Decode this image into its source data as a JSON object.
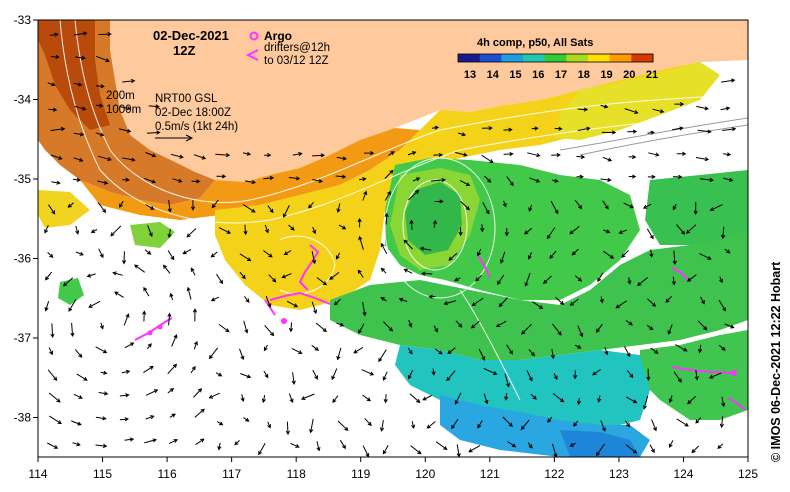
{
  "map": {
    "date_title": "02-Dec-2021",
    "time_title": "12Z",
    "legend": {
      "argo_label": "Argo",
      "drifters_label": "drifters@12h",
      "drifters_sub": "to 03/12 12Z",
      "argo_color": "#ff33ff"
    },
    "currents": {
      "depth1": "200m",
      "depth2": "1000m",
      "product": "NRT00 GSL",
      "time": "02-Dec 18:00Z",
      "scale": "0.5m/s (1kt 24h)"
    },
    "colorbar": {
      "title": "4h comp, p50, All Sats",
      "ticks": [
        "13",
        "14",
        "15",
        "16",
        "17",
        "18",
        "19",
        "20",
        "21"
      ],
      "colors": [
        "#1a1a8c",
        "#1f4fd1",
        "#1ea0e0",
        "#22c8b0",
        "#33cc33",
        "#a8dc1e",
        "#ffe000",
        "#ff9a00",
        "#d43a00"
      ]
    },
    "credit": "© IMOS 06-Dec-2021 12:22 Hobart",
    "axes": {
      "x_ticks": [
        "114",
        "115",
        "116",
        "117",
        "118",
        "119",
        "120",
        "121",
        "122",
        "123",
        "124",
        "125"
      ],
      "y_ticks": [
        "-33",
        "-34",
        "-35",
        "-36",
        "-37",
        "-38"
      ]
    },
    "colors": {
      "land": "#fdc99d",
      "no_data": "#ffffff",
      "coast_warm": "#d4731e",
      "offshore_yellow": "#f4d21a",
      "green": "#42c94a",
      "cyan": "#22c4c0"
    }
  }
}
